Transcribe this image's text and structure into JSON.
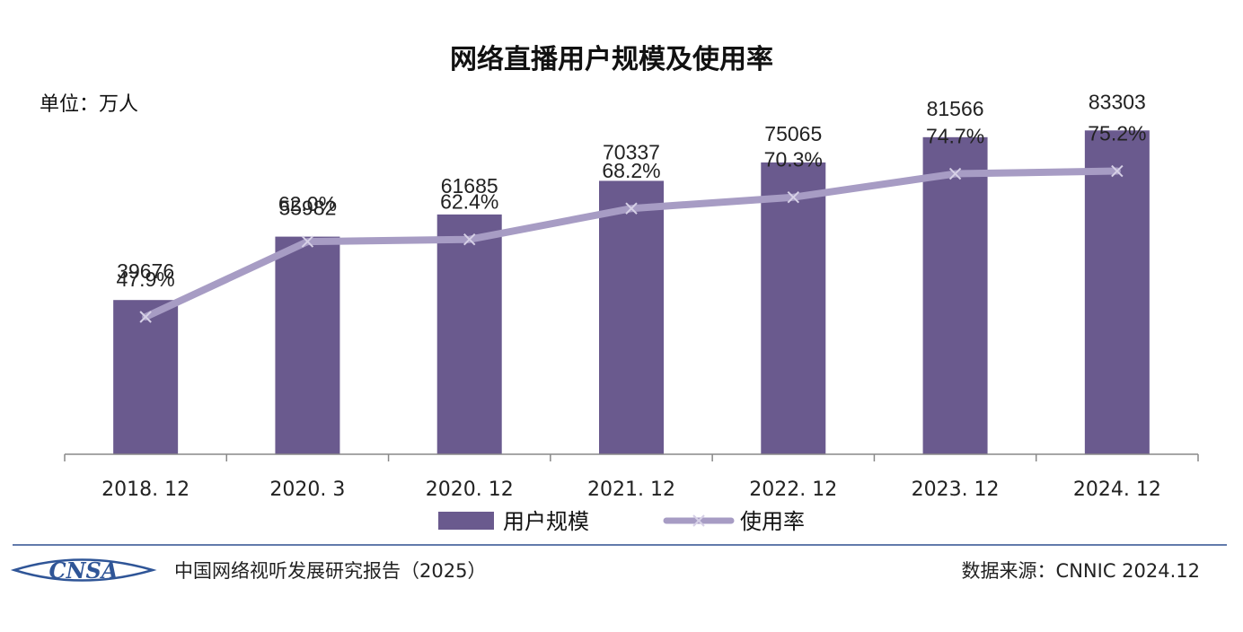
{
  "chart_data": {
    "type": "bar",
    "title": "网络直播用户规模及使用率",
    "unit_label": "单位：万人",
    "categories": [
      "2018. 12",
      "2020. 3",
      "2020. 12",
      "2021. 12",
      "2022. 12",
      "2023. 12",
      "2024. 12"
    ],
    "series": [
      {
        "name": "用户规模",
        "kind": "bar",
        "values": [
          39676,
          55982,
          61685,
          70337,
          75065,
          81566,
          83303
        ],
        "labels": [
          "39676",
          "55982",
          "61685",
          "70337",
          "75065",
          "81566",
          "83303"
        ],
        "color": "#6a5a8e"
      },
      {
        "name": "使用率",
        "kind": "line",
        "values": [
          47.9,
          62.0,
          62.4,
          68.2,
          70.3,
          74.7,
          75.2
        ],
        "labels": [
          "47.9%",
          "62.0%",
          "62.4%",
          "68.2%",
          "70.3%",
          "74.7%",
          "75.2%"
        ],
        "color": "#a79cc4"
      }
    ],
    "ylim_bar": [
      0,
      100000
    ],
    "ylim_line": [
      0,
      100
    ],
    "grid": false,
    "legend_position": "bottom-center"
  },
  "footer": {
    "logo_text": "CNSA",
    "report_title": "中国网络视听发展研究报告（2025）",
    "source": "数据来源：CNNIC 2024.12"
  },
  "colors": {
    "bar": "#6a5a8e",
    "line": "#a79cc4",
    "divider": "#2f4f8f",
    "logo": "#2f5597"
  }
}
